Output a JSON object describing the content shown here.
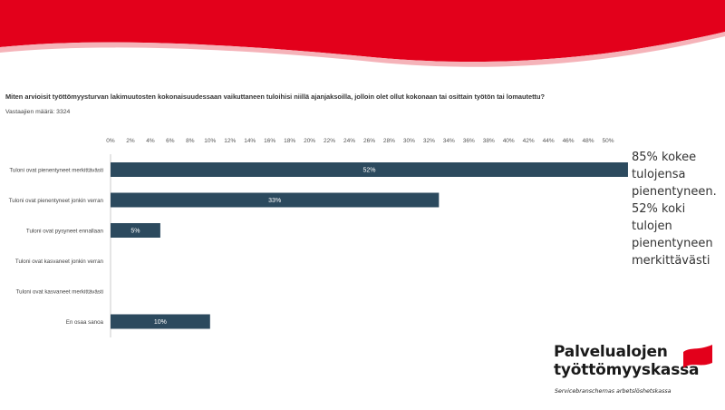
{
  "question": "Miten arvioisit työttömyysturvan lakimuutosten kokonaisuudessaan vaikuttaneen tuloihisi niillä ajanjaksoilla, jolloin olet ollut kokonaan tai osittain työtön tai lomautettu?",
  "respondents": "Vastaajien määrä: 3324",
  "summary_lines": [
    "85% kokee",
    "tulojensa",
    "pienentyneen.",
    "52% koki tulojen",
    "pienentyneen",
    "merkittävästi"
  ],
  "logo": {
    "line1": "Palvelualojen",
    "line2": "työttömyyskassa",
    "sub": "Servicebranschernas arbetslöshetskassa"
  },
  "colors": {
    "bar": "#2c4a5e",
    "brand_red": "#e3001b",
    "grid": "#d9d9d9"
  },
  "chart_data": {
    "type": "bar",
    "orientation": "horizontal",
    "categories": [
      "Tuloni ovat pienentyneet merkittävästi",
      "Tuloni ovat pienentyneet jonkin verran",
      "Tuloni ovat pysyneet ennallaan",
      "Tuloni ovat kasvaneet jonkin verran",
      "Tuloni ovat kasvaneet merkittävästi",
      "En osaa sanoa"
    ],
    "values": [
      52,
      33,
      5,
      0,
      0,
      10
    ],
    "value_labels": [
      "52%",
      "33%",
      "5%",
      "",
      "",
      "10%"
    ],
    "xlim": [
      0,
      50
    ],
    "x_ticks": [
      0,
      2,
      4,
      6,
      8,
      10,
      12,
      14,
      16,
      18,
      20,
      22,
      24,
      26,
      28,
      30,
      32,
      34,
      36,
      38,
      40,
      42,
      44,
      46,
      48,
      50
    ],
    "tick_suffix": "%",
    "grid": false,
    "legend": "none"
  }
}
